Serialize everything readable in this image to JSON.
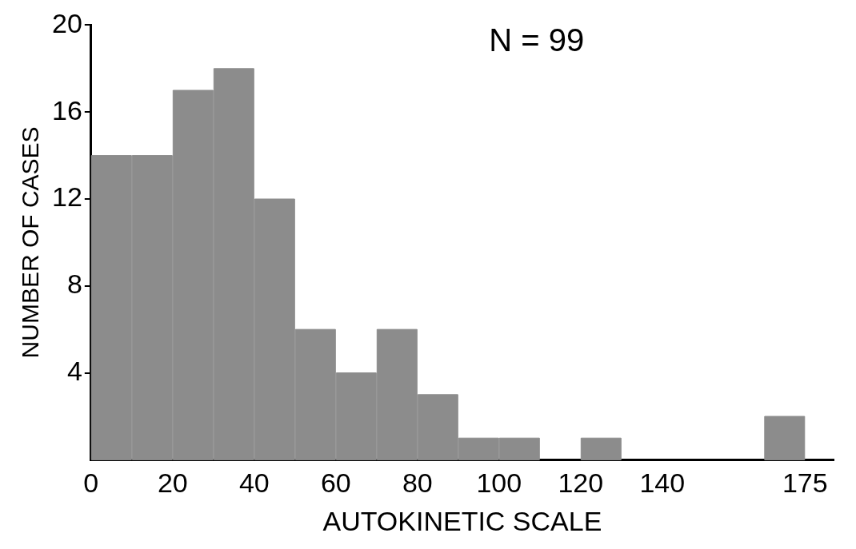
{
  "chart_data": {
    "type": "histogram",
    "xlabel": "AUTOKINETIC SCALE",
    "ylabel": "NUMBER OF CASES",
    "annotations": [
      "N = 99"
    ],
    "bins": [
      0,
      10,
      20,
      30,
      40,
      50,
      60,
      70,
      80,
      90,
      100,
      110,
      120,
      130,
      165,
      175
    ],
    "values": [
      14,
      14,
      17,
      18,
      12,
      6,
      4,
      6,
      3,
      1,
      1,
      0,
      1,
      0,
      2
    ],
    "color": "#8c8c8c",
    "xlim": [
      0,
      182
    ],
    "xticks": [
      0,
      20,
      40,
      60,
      80,
      100,
      120,
      140,
      175
    ],
    "ylim": [
      0,
      20
    ],
    "yticks": [
      4,
      8,
      12,
      16,
      20
    ],
    "grid": false,
    "legend": false
  }
}
